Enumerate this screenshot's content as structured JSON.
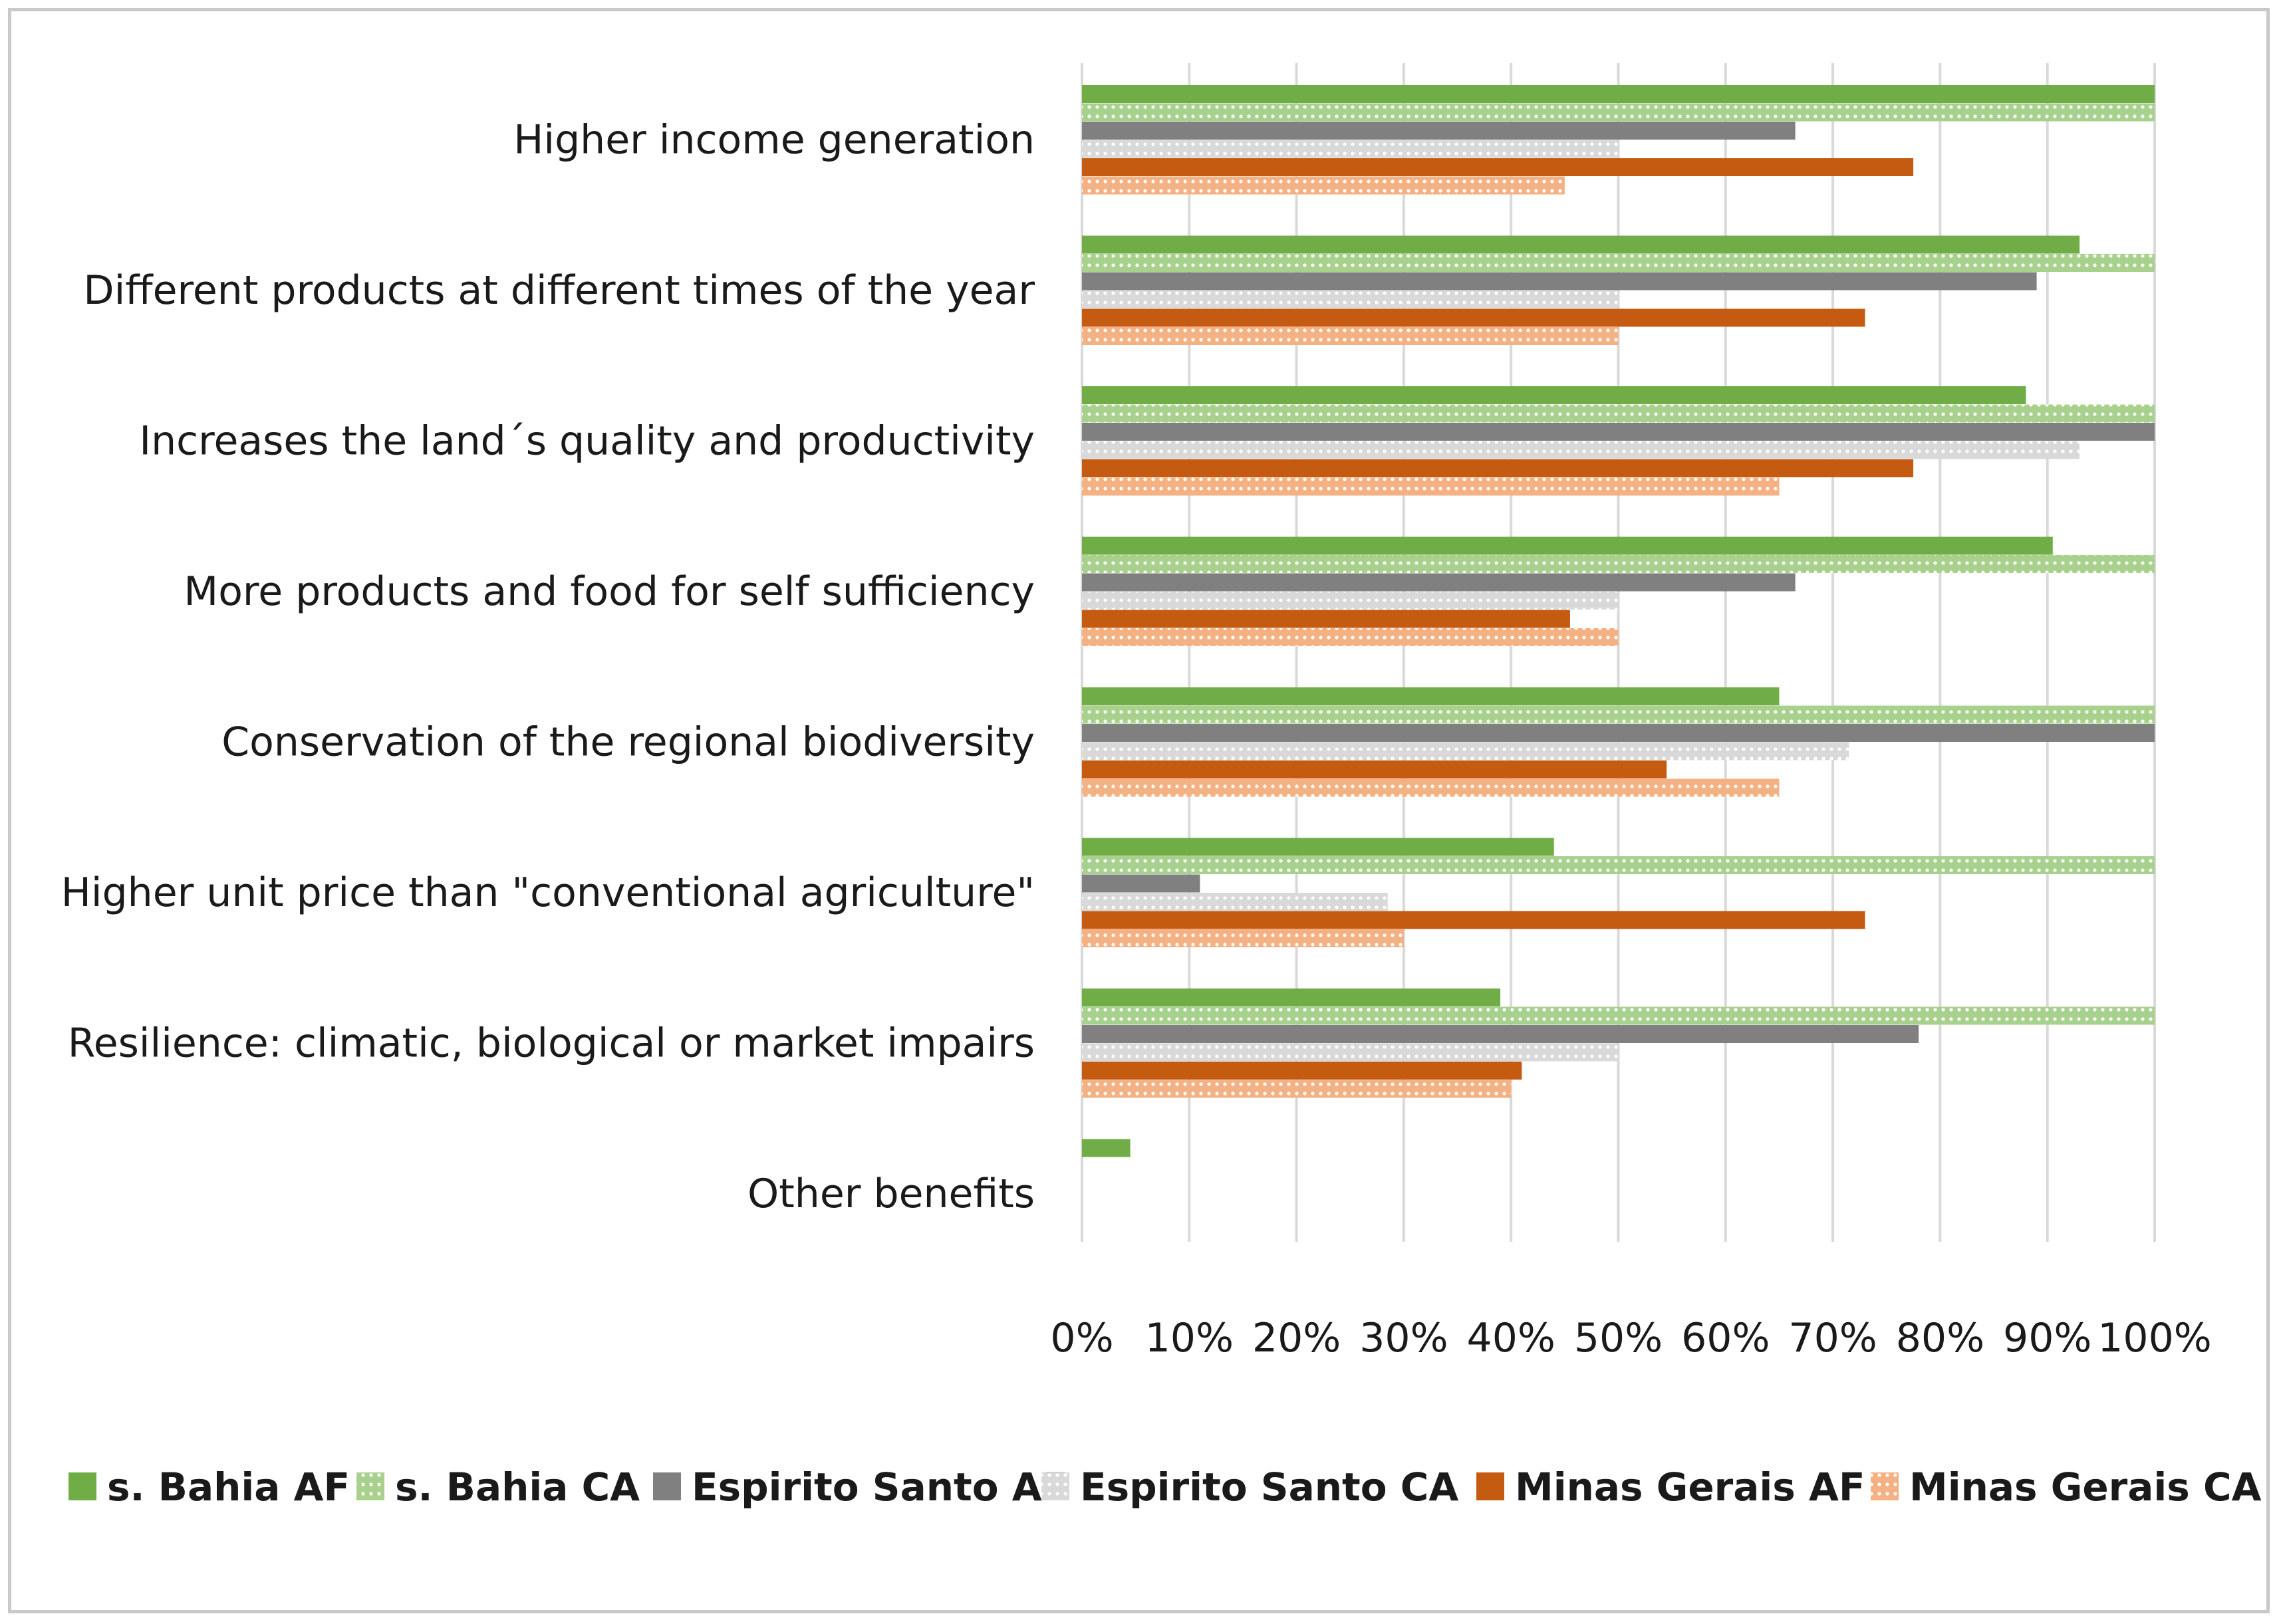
{
  "chart_data": {
    "type": "bar",
    "orientation": "horizontal",
    "title": "",
    "xlabel": "",
    "ylabel": "",
    "xlim": [
      0,
      1
    ],
    "x_tick_labels": [
      "0%",
      "10%",
      "20%",
      "30%",
      "40%",
      "50%",
      "60%",
      "70%",
      "80%",
      "90%",
      "100%"
    ],
    "grid": "vertical",
    "legend_position": "bottom",
    "categories": [
      "Higher income generation",
      "Different products at different times of the year",
      "Increases the land´s quality and productivity",
      "More products and food for self sufficiency",
      "Conservation of the regional biodiversity",
      "Higher unit price than \"conventional agriculture\"",
      "Resilience: climatic, biological or market impairs",
      "Other benefits"
    ],
    "series": [
      {
        "name": "s. Bahia AF",
        "color": "#70ad47",
        "pattern": "solid",
        "values": [
          1.0,
          0.93,
          0.88,
          0.905,
          0.65,
          0.44,
          0.39,
          0.045
        ]
      },
      {
        "name": "s. Bahia CA",
        "color": "#a9d18e",
        "pattern": "dotted",
        "values": [
          1.0,
          1.0,
          1.0,
          1.0,
          1.0,
          1.0,
          1.0,
          0
        ]
      },
      {
        "name": "Espirito Santo AF",
        "color": "#808080",
        "pattern": "solid",
        "values": [
          0.665,
          0.89,
          1.0,
          0.665,
          1.0,
          0.11,
          0.78,
          0
        ]
      },
      {
        "name": "Espirito Santo CA",
        "color": "#d9d9d9",
        "pattern": "dotted",
        "values": [
          0.5,
          0.5,
          0.93,
          0.5,
          0.715,
          0.285,
          0.5,
          0
        ]
      },
      {
        "name": "Minas Gerais AF",
        "color": "#c55a11",
        "pattern": "solid",
        "values": [
          0.775,
          0.73,
          0.775,
          0.455,
          0.545,
          0.73,
          0.41,
          0
        ]
      },
      {
        "name": "Minas Gerais CA",
        "color": "#f4b183",
        "pattern": "dotted",
        "values": [
          0.45,
          0.5,
          0.65,
          0.5,
          0.65,
          0.3,
          0.4,
          0
        ]
      }
    ]
  }
}
